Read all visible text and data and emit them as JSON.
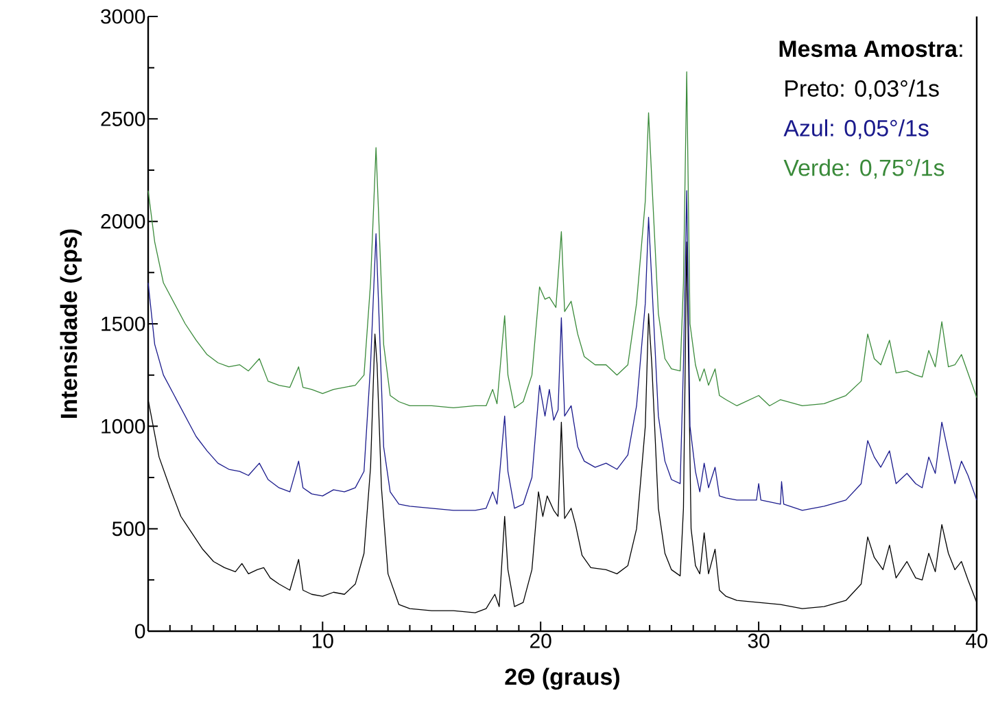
{
  "chart_data": {
    "type": "line",
    "xlabel": "**2Θ (graus)**",
    "ylabel": "**Intensidade (cps)**",
    "legend_title": "**Mesma Amostra**:",
    "legend": "top right",
    "xlim": [
      2,
      40
    ],
    "ylim": [
      0,
      3000
    ],
    "xticks": [
      {
        "value": 3,
        "label": null
      },
      {
        "value": 4,
        "label": null
      },
      {
        "value": 5,
        "label": null
      },
      {
        "value": 6,
        "label": null
      },
      {
        "value": 7,
        "label": null
      },
      {
        "value": 8,
        "label": null
      },
      {
        "value": 9,
        "label": null
      },
      10,
      {
        "value": 11,
        "label": null
      },
      {
        "value": 12,
        "label": null
      },
      {
        "value": 13,
        "label": null
      },
      {
        "value": 14,
        "label": null
      },
      {
        "value": 15,
        "label": null
      },
      {
        "value": 16,
        "label": null
      },
      {
        "value": 17,
        "label": null
      },
      {
        "value": 18,
        "label": null
      },
      {
        "value": 19,
        "label": null
      },
      20,
      {
        "value": 21,
        "label": null
      },
      {
        "value": 22,
        "label": null
      },
      {
        "value": 23,
        "label": null
      },
      {
        "value": 24,
        "label": null
      },
      {
        "value": 25,
        "label": null
      },
      {
        "value": 26,
        "label": null
      },
      {
        "value": 27,
        "label": null
      },
      {
        "value": 28,
        "label": null
      },
      {
        "value": 29,
        "label": null
      },
      30,
      {
        "value": 31,
        "label": null
      },
      {
        "value": 32,
        "label": null
      },
      {
        "value": 33,
        "label": null
      },
      {
        "value": 34,
        "label": null
      },
      {
        "value": 35,
        "label": null
      },
      {
        "value": 36,
        "label": null
      },
      {
        "value": 37,
        "label": null
      },
      {
        "value": 38,
        "label": null
      },
      {
        "value": 39,
        "label": null
      },
      40
    ],
    "yticks": [
      0,
      {
        "value": 250,
        "label": null
      },
      500,
      {
        "value": 750,
        "label": null
      },
      1000,
      {
        "value": 1250,
        "label": null
      },
      1500,
      {
        "value": 1750,
        "label": null
      },
      2000,
      {
        "value": 2250,
        "label": null
      },
      2500,
      {
        "value": 2750,
        "label": null
      },
      3000
    ],
    "series": [
      {
        "name": "Preto: 0,03°/1s",
        "color": "#000000",
        "x": [
          2.0,
          2.5,
          3,
          3.5,
          4,
          4.5,
          5,
          5.5,
          6,
          6.3,
          6.6,
          7,
          7.3,
          7.6,
          8,
          8.5,
          8.9,
          9.1,
          9.5,
          10,
          10.5,
          11,
          11.5,
          11.9,
          12.2,
          12.4,
          12.5,
          12.7,
          13,
          13.5,
          14,
          15,
          16,
          17,
          17.5,
          17.9,
          18.1,
          18.35,
          18.5,
          18.8,
          19.2,
          19.6,
          19.9,
          20.1,
          20.3,
          20.6,
          20.8,
          20.95,
          21.1,
          21.4,
          21.6,
          21.9,
          22.3,
          23,
          23.5,
          24,
          24.4,
          24.8,
          24.95,
          25.1,
          25.4,
          25.7,
          26,
          26.4,
          26.55,
          26.7,
          26.9,
          27.1,
          27.3,
          27.5,
          27.7,
          28.0,
          28.2,
          28.5,
          29,
          30,
          31,
          32,
          33,
          34,
          34.7,
          35,
          35.3,
          35.7,
          36,
          36.3,
          36.8,
          37.2,
          37.5,
          37.8,
          38.1,
          38.4,
          38.7,
          39,
          39.3,
          39.6,
          40
        ],
        "values": [
          1130,
          850,
          700,
          560,
          480,
          400,
          340,
          310,
          290,
          330,
          280,
          300,
          310,
          260,
          230,
          200,
          350,
          200,
          180,
          170,
          190,
          180,
          230,
          380,
          800,
          1450,
          1300,
          700,
          280,
          130,
          110,
          100,
          100,
          90,
          110,
          180,
          120,
          560,
          300,
          120,
          140,
          300,
          680,
          560,
          660,
          590,
          560,
          1020,
          550,
          600,
          520,
          370,
          310,
          300,
          280,
          320,
          500,
          1000,
          1550,
          1300,
          600,
          380,
          300,
          270,
          600,
          1900,
          500,
          320,
          280,
          480,
          280,
          400,
          200,
          170,
          150,
          140,
          130,
          110,
          120,
          150,
          230,
          460,
          360,
          300,
          420,
          260,
          340,
          260,
          250,
          380,
          290,
          520,
          380,
          300,
          340,
          250,
          140
        ]
      },
      {
        "name": "Azul: 0,05°/1s",
        "color": "#1a1a8c",
        "x": [
          2,
          2.3,
          2.7,
          3.2,
          3.7,
          4.2,
          4.7,
          5.2,
          5.7,
          6.2,
          6.6,
          7.1,
          7.5,
          8,
          8.5,
          8.9,
          9.1,
          9.5,
          10,
          10.5,
          11,
          11.5,
          11.9,
          12.2,
          12.45,
          12.6,
          12.8,
          13.1,
          13.5,
          14,
          15,
          16,
          17,
          17.5,
          17.8,
          18.0,
          18.35,
          18.5,
          18.8,
          19.2,
          19.6,
          19.95,
          20.2,
          20.4,
          20.6,
          20.8,
          20.95,
          21.1,
          21.4,
          21.7,
          22,
          22.5,
          23,
          23.5,
          24,
          24.4,
          24.8,
          24.95,
          25.1,
          25.4,
          25.7,
          26,
          26.4,
          26.55,
          26.7,
          26.85,
          27.1,
          27.3,
          27.5,
          27.7,
          28.0,
          28.2,
          28.5,
          29,
          29.9,
          30,
          30.1,
          31,
          31.05,
          31.15,
          32,
          33,
          34,
          34.7,
          35,
          35.3,
          35.6,
          36,
          36.3,
          36.8,
          37.2,
          37.5,
          37.8,
          38.1,
          38.4,
          38.7,
          39,
          39.3,
          39.6,
          40
        ],
        "values": [
          1700,
          1400,
          1250,
          1150,
          1050,
          950,
          880,
          820,
          790,
          780,
          760,
          820,
          740,
          700,
          680,
          830,
          700,
          670,
          660,
          690,
          680,
          700,
          780,
          1300,
          1940,
          1500,
          900,
          680,
          620,
          610,
          600,
          590,
          590,
          600,
          680,
          620,
          1050,
          780,
          600,
          620,
          750,
          1200,
          1050,
          1180,
          1030,
          1080,
          1530,
          1050,
          1100,
          900,
          830,
          800,
          820,
          790,
          860,
          1100,
          1600,
          2020,
          1700,
          1050,
          830,
          740,
          720,
          1300,
          2150,
          1000,
          780,
          680,
          820,
          700,
          800,
          660,
          650,
          640,
          640,
          720,
          640,
          620,
          730,
          620,
          590,
          610,
          640,
          720,
          930,
          850,
          800,
          880,
          720,
          770,
          720,
          700,
          850,
          770,
          1020,
          870,
          720,
          830,
          760,
          640
        ]
      },
      {
        "name": "Verde: 0,75°/1s",
        "color": "#3a8a3a",
        "x": [
          2,
          2.3,
          2.7,
          3.2,
          3.7,
          4.2,
          4.7,
          5.2,
          5.7,
          6.2,
          6.6,
          7.1,
          7.5,
          8,
          8.5,
          8.9,
          9.1,
          9.5,
          10,
          10.5,
          11,
          11.5,
          11.9,
          12.2,
          12.45,
          12.6,
          12.8,
          13.1,
          13.5,
          14,
          15,
          16,
          17,
          17.5,
          17.8,
          18.0,
          18.35,
          18.5,
          18.8,
          19.2,
          19.6,
          19.95,
          20.2,
          20.4,
          20.7,
          20.95,
          21.1,
          21.4,
          21.7,
          22,
          22.5,
          23,
          23.5,
          24,
          24.4,
          24.8,
          24.95,
          25.1,
          25.4,
          25.7,
          26,
          26.4,
          26.55,
          26.7,
          26.85,
          27.1,
          27.3,
          27.5,
          27.7,
          28.0,
          28.2,
          28.5,
          29,
          30,
          30.5,
          31,
          32,
          33,
          34,
          34.7,
          35,
          35.3,
          35.6,
          36,
          36.3,
          36.8,
          37.2,
          37.5,
          37.8,
          38.1,
          38.4,
          38.7,
          39,
          39.3,
          39.6,
          40
        ],
        "values": [
          2150,
          1900,
          1700,
          1600,
          1500,
          1420,
          1350,
          1310,
          1290,
          1300,
          1270,
          1330,
          1220,
          1200,
          1190,
          1290,
          1190,
          1180,
          1160,
          1180,
          1190,
          1200,
          1250,
          1700,
          2360,
          1950,
          1400,
          1150,
          1120,
          1100,
          1100,
          1090,
          1100,
          1100,
          1180,
          1110,
          1540,
          1250,
          1090,
          1120,
          1250,
          1680,
          1620,
          1630,
          1580,
          1950,
          1560,
          1610,
          1450,
          1340,
          1300,
          1300,
          1250,
          1300,
          1600,
          2100,
          2530,
          2200,
          1550,
          1330,
          1280,
          1270,
          1700,
          2730,
          1500,
          1300,
          1220,
          1280,
          1200,
          1280,
          1150,
          1130,
          1100,
          1150,
          1100,
          1130,
          1100,
          1110,
          1150,
          1220,
          1450,
          1330,
          1300,
          1420,
          1260,
          1270,
          1250,
          1240,
          1370,
          1290,
          1510,
          1290,
          1300,
          1350,
          1260,
          1140
        ]
      }
    ]
  }
}
